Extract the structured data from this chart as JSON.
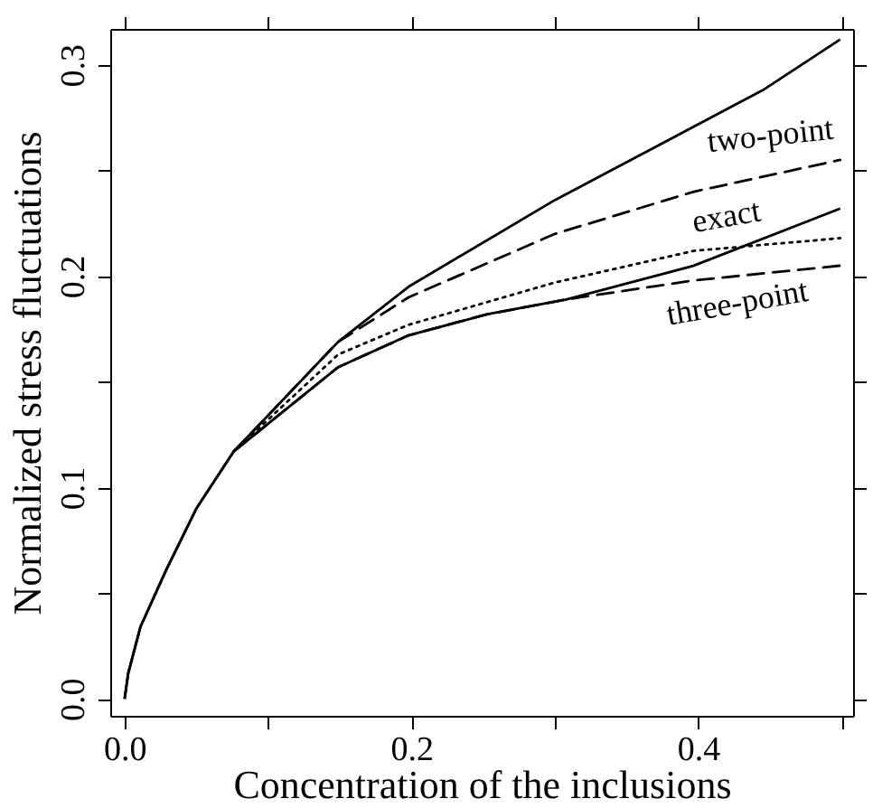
{
  "chart_data": {
    "type": "line",
    "xlabel": "Concentration of the inclusions",
    "ylabel": "Normalized stress fluctuations",
    "xlim": [
      -0.01,
      0.508
    ],
    "ylim": [
      -0.008,
      0.317
    ],
    "xticks": [
      {
        "value": 0,
        "label": "0.0"
      },
      {
        "value": 0.1,
        "label": null
      },
      0.2,
      {
        "value": 0.3,
        "label": null
      },
      0.4,
      {
        "value": 0.5,
        "label": null
      }
    ],
    "yticks": [
      {
        "value": 0,
        "label": "0.0"
      },
      {
        "value": 0.05,
        "label": null
      },
      0.1,
      {
        "value": 0.15,
        "label": null
      },
      0.2,
      {
        "value": 0.25,
        "label": null
      },
      0.3
    ],
    "grid": false,
    "marker": "none",
    "series": [
      {
        "color": "#000000",
        "line_style": "solid",
        "x": [
          0,
          0.0025,
          0.011,
          0.029,
          0.05,
          0.076,
          0.149,
          0.198,
          0.3,
          0.445,
          0.499
        ],
        "values": [
          0,
          0.012,
          0.034,
          0.061,
          0.09,
          0.117,
          0.169,
          0.195,
          0.236,
          0.288,
          0.312
        ]
      },
      {
        "color": "#000000",
        "line_style": "solid",
        "x": [
          0,
          0.0025,
          0.011,
          0.029,
          0.05,
          0.076,
          0.149,
          0.198,
          0.253,
          0.308,
          0.397,
          0.499
        ],
        "values": [
          0,
          0.012,
          0.034,
          0.061,
          0.09,
          0.117,
          0.157,
          0.172,
          0.182,
          0.189,
          0.205,
          0.232
        ]
      },
      {
        "name": "two-point",
        "color": "#000000",
        "line_style": "dashed",
        "x": [
          0.076,
          0.149,
          0.198,
          0.3,
          0.397,
          0.499
        ],
        "values": [
          0.117,
          0.169,
          0.19,
          0.22,
          0.24,
          0.255
        ]
      },
      {
        "name": "exact",
        "color": "#000000",
        "line_style": "dotted",
        "x": [
          0.076,
          0.149,
          0.198,
          0.3,
          0.397,
          0.499
        ],
        "values": [
          0.117,
          0.163,
          0.177,
          0.197,
          0.212,
          0.218
        ]
      },
      {
        "name": "three-point",
        "color": "#000000",
        "line_style": "dashed",
        "x": [
          0.076,
          0.149,
          0.198,
          0.253,
          0.308,
          0.397,
          0.499
        ],
        "values": [
          0.117,
          0.157,
          0.172,
          0.182,
          0.189,
          0.198,
          0.205
        ]
      }
    ]
  }
}
